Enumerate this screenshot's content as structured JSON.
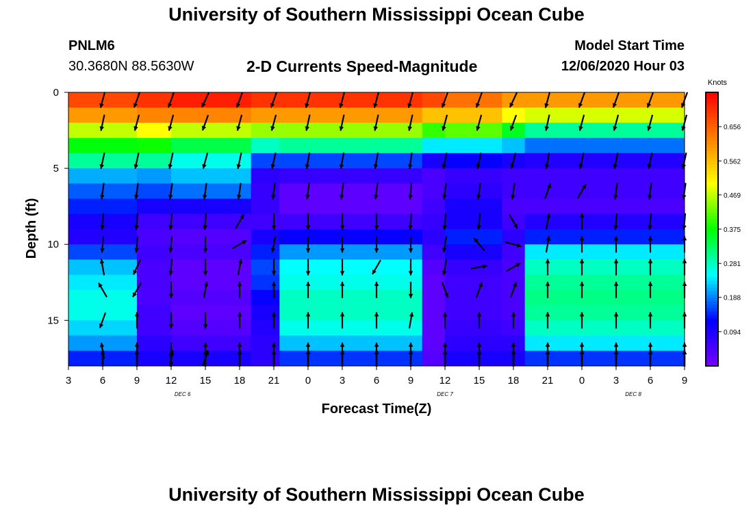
{
  "header": {
    "title": "University of Southern Mississippi Ocean Cube",
    "footer_title": "University of Southern Mississippi Ocean Cube",
    "station_id": "PNLM6",
    "station_coords": "30.3680N 88.5630W",
    "subtitle": "2-D Currents Speed-Magnitude",
    "model_start_label": "Model Start Time",
    "model_start_value": "12/06/2020 Hour 03"
  },
  "chart_data": {
    "type": "heatmap",
    "title": "2-D Currents Speed-Magnitude",
    "xlabel": "Forecast Time(Z)",
    "ylabel": "Depth (ft)",
    "x_range_hours": [
      0,
      54
    ],
    "x_ticks": [
      {
        "hour": 0,
        "label": "3"
      },
      {
        "hour": 3,
        "label": "6"
      },
      {
        "hour": 6,
        "label": "9"
      },
      {
        "hour": 9,
        "label": "12"
      },
      {
        "hour": 12,
        "label": "15"
      },
      {
        "hour": 15,
        "label": "18"
      },
      {
        "hour": 18,
        "label": "21"
      },
      {
        "hour": 21,
        "label": "0"
      },
      {
        "hour": 24,
        "label": "3"
      },
      {
        "hour": 27,
        "label": "6"
      },
      {
        "hour": 30,
        "label": "9"
      },
      {
        "hour": 33,
        "label": "12"
      },
      {
        "hour": 36,
        "label": "15"
      },
      {
        "hour": 39,
        "label": "18"
      },
      {
        "hour": 42,
        "label": "21"
      },
      {
        "hour": 45,
        "label": "0"
      },
      {
        "hour": 48,
        "label": "3"
      },
      {
        "hour": 51,
        "label": "6"
      },
      {
        "hour": 54,
        "label": "9"
      }
    ],
    "date_labels": [
      {
        "hour": 10,
        "label": "DEC 6"
      },
      {
        "hour": 33,
        "label": "DEC 7"
      },
      {
        "hour": 49.5,
        "label": "DEC 8"
      }
    ],
    "y_range_ft": [
      0,
      18
    ],
    "y_ticks": [
      0,
      5,
      10,
      15
    ],
    "colorbar": {
      "label": "Knots",
      "min": 0,
      "max": 0.75,
      "ticks": [
        0.094,
        0.188,
        0.281,
        0.375,
        0.469,
        0.562,
        0.656
      ],
      "tick_labels": [
        "0.094",
        "0.188",
        "0.281",
        "0.375",
        "0.469",
        "0.562",
        "0.656"
      ],
      "colors": [
        "#7a00ff",
        "#0000ff",
        "#00ffff",
        "#00ff00",
        "#ffff00",
        "#ff8000",
        "#ff0000"
      ]
    },
    "depths_ft": [
      0.5,
      1.5,
      2.5,
      3.5,
      4.5,
      5.5,
      6.5,
      7.5,
      8.5,
      9.5,
      10.5,
      11.5,
      12.5,
      13.5,
      14.5,
      15.5,
      16.5,
      17.5
    ],
    "profile_segments": [
      {
        "start": 0,
        "end": 6,
        "speeds": [
          0.68,
          0.6,
          0.47,
          0.37,
          0.3,
          0.21,
          0.17,
          0.14,
          0.1,
          0.09,
          0.16,
          0.22,
          0.24,
          0.26,
          0.26,
          0.23,
          0.2,
          0.14
        ]
      },
      {
        "start": 6,
        "end": 9,
        "speeds": [
          0.7,
          0.62,
          0.5,
          0.38,
          0.3,
          0.2,
          0.16,
          0.1,
          0.06,
          0.05,
          0.06,
          0.05,
          0.05,
          0.05,
          0.06,
          0.06,
          0.08,
          0.1
        ]
      },
      {
        "start": 9,
        "end": 16,
        "speeds": [
          0.72,
          0.62,
          0.47,
          0.34,
          0.26,
          0.22,
          0.18,
          0.1,
          0.06,
          0.04,
          0.05,
          0.03,
          0.03,
          0.04,
          0.03,
          0.04,
          0.06,
          0.1
        ]
      },
      {
        "start": 16,
        "end": 18.5,
        "speeds": [
          0.7,
          0.6,
          0.45,
          0.28,
          0.16,
          0.08,
          0.07,
          0.07,
          0.06,
          0.1,
          0.14,
          0.16,
          0.15,
          0.12,
          0.1,
          0.09,
          0.08,
          0.08
        ]
      },
      {
        "start": 18.5,
        "end": 31,
        "speeds": [
          0.7,
          0.6,
          0.45,
          0.3,
          0.16,
          0.07,
          0.03,
          0.03,
          0.06,
          0.12,
          0.2,
          0.25,
          0.26,
          0.28,
          0.28,
          0.26,
          0.22,
          0.15
        ]
      },
      {
        "start": 31,
        "end": 33,
        "speeds": [
          0.68,
          0.56,
          0.4,
          0.24,
          0.1,
          0.05,
          0.05,
          0.06,
          0.07,
          0.08,
          0.06,
          0.04,
          0.03,
          0.03,
          0.03,
          0.03,
          0.03,
          0.04
        ]
      },
      {
        "start": 33,
        "end": 38,
        "speeds": [
          0.64,
          0.56,
          0.42,
          0.24,
          0.12,
          0.07,
          0.08,
          0.1,
          0.1,
          0.14,
          0.1,
          0.07,
          0.06,
          0.06,
          0.06,
          0.07,
          0.08,
          0.1
        ]
      },
      {
        "start": 38,
        "end": 40,
        "speeds": [
          0.6,
          0.5,
          0.36,
          0.22,
          0.1,
          0.06,
          0.06,
          0.05,
          0.06,
          0.08,
          0.06,
          0.05,
          0.05,
          0.05,
          0.05,
          0.06,
          0.08,
          0.1
        ]
      },
      {
        "start": 40,
        "end": 54,
        "speeds": [
          0.6,
          0.48,
          0.3,
          0.18,
          0.09,
          0.06,
          0.06,
          0.05,
          0.09,
          0.14,
          0.24,
          0.28,
          0.3,
          0.31,
          0.3,
          0.28,
          0.24,
          0.15
        ]
      }
    ],
    "vectors": [
      {
        "hour": 3,
        "angles_deg": [
          255,
          258,
          258,
          262,
          265,
          265,
          100,
          120,
          250,
          100,
          90,
          90,
          90,
          90
        ]
      },
      {
        "hour": 6,
        "angles_deg": [
          250,
          255,
          258,
          262,
          265,
          265,
          245,
          240,
          90,
          90,
          90,
          90,
          90,
          90
        ]
      },
      {
        "hour": 9,
        "angles_deg": [
          250,
          255,
          258,
          262,
          265,
          265,
          265,
          270,
          270,
          270,
          270,
          80,
          80,
          90
        ]
      },
      {
        "hour": 12,
        "angles_deg": [
          245,
          250,
          255,
          262,
          265,
          270,
          270,
          80,
          270,
          90,
          70,
          70,
          75,
          90
        ]
      },
      {
        "hour": 15,
        "angles_deg": [
          250,
          255,
          258,
          262,
          60,
          30,
          80,
          90,
          90,
          90,
          90,
          90,
          90,
          90
        ]
      },
      {
        "hour": 18,
        "angles_deg": [
          250,
          255,
          258,
          262,
          270,
          260,
          270,
          90,
          90,
          90,
          90,
          90,
          90,
          90
        ]
      },
      {
        "hour": 21,
        "angles_deg": [
          255,
          258,
          260,
          262,
          270,
          270,
          270,
          90,
          90,
          90,
          90,
          90,
          90,
          90
        ]
      },
      {
        "hour": 24,
        "angles_deg": [
          255,
          258,
          260,
          262,
          270,
          270,
          270,
          90,
          90,
          90,
          90,
          90,
          90,
          90
        ]
      },
      {
        "hour": 27,
        "angles_deg": [
          255,
          258,
          260,
          262,
          270,
          270,
          240,
          90,
          90,
          90,
          90,
          90,
          90,
          90
        ]
      },
      {
        "hour": 30,
        "angles_deg": [
          255,
          258,
          262,
          265,
          265,
          270,
          270,
          270,
          80,
          90,
          90,
          90,
          90,
          90
        ]
      },
      {
        "hour": 33,
        "angles_deg": [
          250,
          255,
          258,
          262,
          265,
          260,
          260,
          290,
          90,
          90,
          90,
          90,
          90,
          90
        ]
      },
      {
        "hour": 36,
        "angles_deg": [
          250,
          255,
          258,
          262,
          265,
          130,
          10,
          70,
          90,
          90,
          90,
          90,
          90,
          90
        ]
      },
      {
        "hour": 39,
        "angles_deg": [
          245,
          250,
          255,
          262,
          300,
          345,
          30,
          70,
          90,
          90,
          90,
          90,
          90,
          90
        ]
      },
      {
        "hour": 42,
        "angles_deg": [
          255,
          258,
          260,
          70,
          80,
          80,
          90,
          90,
          90,
          90,
          90,
          90,
          90,
          90
        ]
      },
      {
        "hour": 45,
        "angles_deg": [
          250,
          255,
          258,
          60,
          90,
          90,
          90,
          90,
          90,
          90,
          90,
          90,
          90,
          90
        ]
      },
      {
        "hour": 48,
        "angles_deg": [
          250,
          255,
          258,
          262,
          265,
          90,
          90,
          90,
          90,
          90,
          90,
          90,
          90,
          90
        ]
      },
      {
        "hour": 51,
        "angles_deg": [
          250,
          255,
          258,
          262,
          265,
          90,
          90,
          90,
          90,
          90,
          90,
          90,
          90,
          90
        ]
      },
      {
        "hour": 54,
        "angles_deg": [
          250,
          255,
          258,
          262,
          265,
          90,
          90,
          90,
          90,
          90,
          90,
          90,
          90,
          90
        ]
      }
    ],
    "vector_depths_ft": [
      0.5,
      2,
      4.5,
      6.5,
      8.5,
      10,
      11.5,
      13,
      15,
      17,
      17.5,
      17.5,
      17.5,
      17.5
    ]
  }
}
